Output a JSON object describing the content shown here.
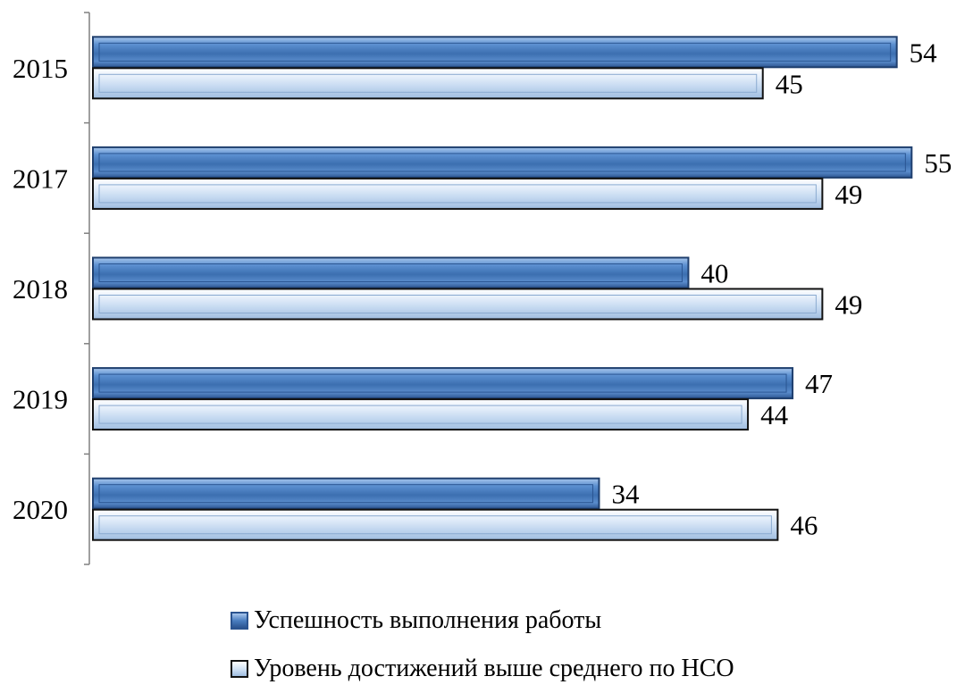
{
  "chart_data": {
    "type": "bar",
    "orientation": "horizontal",
    "categories": [
      "2015",
      "2017",
      "2018",
      "2019",
      "2020"
    ],
    "series": [
      {
        "name": "Успешность выполнения работы",
        "values": [
          54,
          55,
          40,
          47,
          34
        ],
        "color": "#4a7ec0"
      },
      {
        "name": "Уровень достижений выше среднего по НСО",
        "values": [
          45,
          49,
          49,
          44,
          46
        ],
        "color": "#c9dcf1"
      }
    ],
    "xlim": [
      0,
      56
    ],
    "grid": false,
    "legend": "bottom",
    "data_labels": true,
    "title": "",
    "xlabel": "",
    "ylabel": ""
  }
}
